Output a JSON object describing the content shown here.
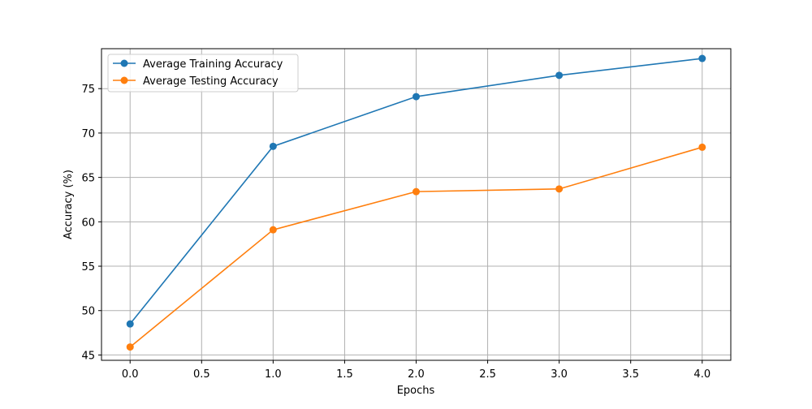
{
  "chart_data": {
    "type": "line",
    "title": "",
    "xlabel": "Epochs",
    "ylabel": "Accuracy (%)",
    "xlim": [
      -0.2,
      4.2
    ],
    "ylim": [
      44.4,
      79.5
    ],
    "xticks": [
      0.0,
      0.5,
      1.0,
      1.5,
      2.0,
      2.5,
      3.0,
      3.5,
      4.0
    ],
    "xtick_labels": [
      "0.0",
      "0.5",
      "1.0",
      "1.5",
      "2.0",
      "2.5",
      "3.0",
      "3.5",
      "4.0"
    ],
    "yticks": [
      45,
      50,
      55,
      60,
      65,
      70,
      75
    ],
    "ytick_labels": [
      "45",
      "50",
      "55",
      "60",
      "65",
      "70",
      "75"
    ],
    "grid": true,
    "legend_position": "top-left",
    "x": [
      0,
      1,
      2,
      3,
      4
    ],
    "series": [
      {
        "name": "Average Training Accuracy",
        "color": "#1f77b4",
        "marker": "circle",
        "values": [
          48.5,
          68.5,
          74.1,
          76.5,
          78.4
        ]
      },
      {
        "name": "Average Testing Accuracy",
        "color": "#ff7f0e",
        "marker": "circle",
        "values": [
          45.9,
          59.1,
          63.4,
          63.7,
          68.4
        ]
      }
    ]
  }
}
